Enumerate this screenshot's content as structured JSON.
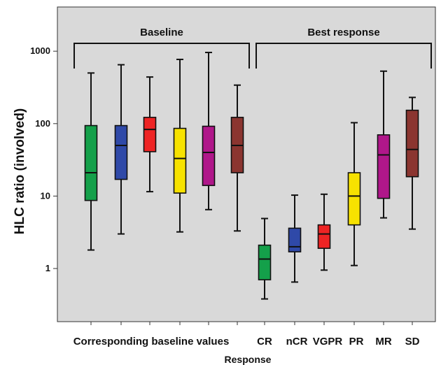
{
  "chart_data": {
    "type": "boxplot",
    "xlabel": "Response",
    "ylabel": "HLC ratio (involved)",
    "yscale": "log",
    "ylim": [
      0.3,
      3000
    ],
    "yticks": [
      {
        "value": 1,
        "label": "1"
      },
      {
        "value": 10,
        "label": "10"
      },
      {
        "value": 100,
        "label": "100"
      },
      {
        "value": 1000,
        "label": "1000"
      }
    ],
    "group_labels": [
      "Baseline",
      "Best response"
    ],
    "baseline_axis_label": "Corresponding baseline values",
    "response_categories": [
      "CR",
      "nCR",
      "VGPR",
      "PR",
      "MR",
      "SD"
    ],
    "colors": {
      "CR": "#14a04a",
      "nCR": "#2f49a8",
      "VGPR": "#ee2424",
      "PR": "#f7e200",
      "MR": "#b0178a",
      "SD": "#8b3530",
      "plot_background": "#d9d9d9"
    },
    "boxes": [
      {
        "group": "baseline",
        "category": "CR",
        "whisker_low": 1.8,
        "q1": 8.7,
        "median": 21,
        "q3": 94,
        "whisker_high": 500
      },
      {
        "group": "baseline",
        "category": "nCR",
        "whisker_low": 3.0,
        "q1": 17,
        "median": 50,
        "q3": 94,
        "whisker_high": 650
      },
      {
        "group": "baseline",
        "category": "VGPR",
        "whisker_low": 11.5,
        "q1": 41,
        "median": 83,
        "q3": 122,
        "whisker_high": 440
      },
      {
        "group": "baseline",
        "category": "PR",
        "whisker_low": 3.2,
        "q1": 11,
        "median": 33,
        "q3": 86,
        "whisker_high": 770
      },
      {
        "group": "baseline",
        "category": "MR",
        "whisker_low": 6.5,
        "q1": 14,
        "median": 40,
        "q3": 92,
        "whisker_high": 960
      },
      {
        "group": "baseline",
        "category": "SD",
        "whisker_low": 3.3,
        "q1": 21,
        "median": 50,
        "q3": 122,
        "whisker_high": 340
      },
      {
        "group": "response",
        "category": "CR",
        "whisker_low": 0.38,
        "q1": 0.7,
        "median": 1.35,
        "q3": 2.1,
        "whisker_high": 4.9
      },
      {
        "group": "response",
        "category": "nCR",
        "whisker_low": 0.65,
        "q1": 1.7,
        "median": 2.0,
        "q3": 3.6,
        "whisker_high": 10.3
      },
      {
        "group": "response",
        "category": "VGPR",
        "whisker_low": 0.95,
        "q1": 1.9,
        "median": 3.0,
        "q3": 4.0,
        "whisker_high": 10.6
      },
      {
        "group": "response",
        "category": "PR",
        "whisker_low": 1.1,
        "q1": 4.0,
        "median": 10,
        "q3": 21,
        "whisker_high": 103
      },
      {
        "group": "response",
        "category": "MR",
        "whisker_low": 5.0,
        "q1": 9.3,
        "median": 37,
        "q3": 70,
        "whisker_high": 530
      },
      {
        "group": "response",
        "category": "SD",
        "whisker_low": 3.5,
        "q1": 18.5,
        "median": 44,
        "q3": 153,
        "whisker_high": 230
      }
    ]
  }
}
